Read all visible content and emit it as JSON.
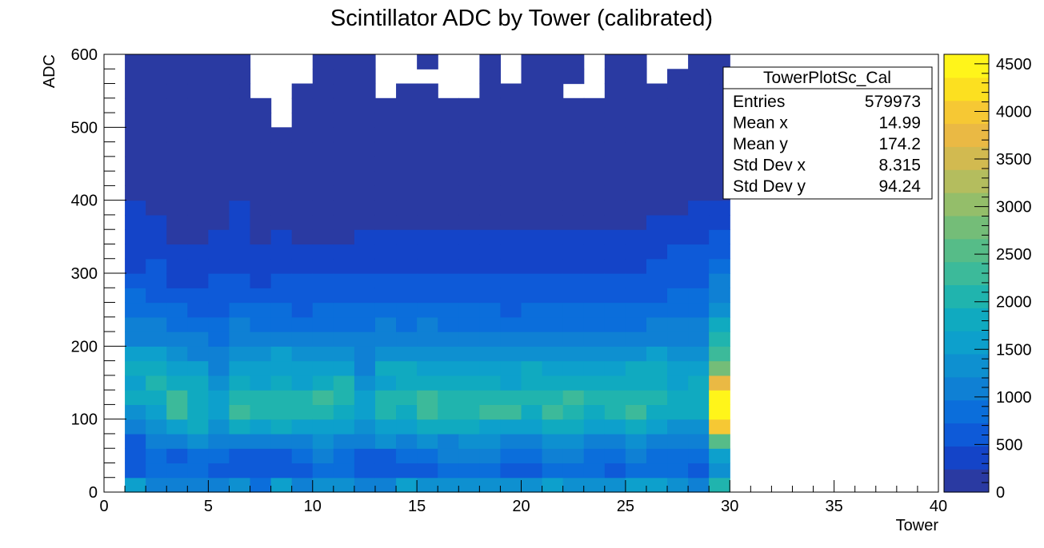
{
  "chart_data": {
    "type": "heatmap",
    "title": "Scintillator ADC by Tower (calibrated)",
    "xlabel": "Tower",
    "ylabel": "ADC",
    "xlim": [
      0,
      40
    ],
    "ylim": [
      0,
      600
    ],
    "x_ticks": [
      "0",
      "5",
      "10",
      "15",
      "20",
      "25",
      "30",
      "35",
      "40"
    ],
    "y_ticks": [
      "0",
      "100",
      "200",
      "300",
      "400",
      "500",
      "600"
    ],
    "bin_width_x": 1,
    "bin_width_y": 20,
    "x_bins_start": 1,
    "zlim": [
      0,
      4600
    ],
    "z_ticks": [
      "0",
      "500",
      "1000",
      "1500",
      "2000",
      "2500",
      "3000",
      "3500",
      "4000",
      "4500"
    ],
    "palette": [
      "#2a3aa2",
      "#1444c8",
      "#0e5ad8",
      "#0b6edb",
      "#0f80d4",
      "#0e90d0",
      "#0da0cc",
      "#10aac0",
      "#20b4ae",
      "#3cba9a",
      "#56bc88",
      "#74bd78",
      "#94be6a",
      "#b4bd5e",
      "#d2ba50",
      "#eab944",
      "#f6c834",
      "#fce020",
      "#fff51a"
    ],
    "stats_box": {
      "name": "TowerPlotSc_Cal",
      "rows": [
        {
          "label": "Entries",
          "value": "579973"
        },
        {
          "label": "Mean x",
          "value": "14.99"
        },
        {
          "label": "Mean y",
          "value": "174.2"
        },
        {
          "label": "Std Dev x",
          "value": "8.315"
        },
        {
          "label": "Std Dev y",
          "value": "94.24"
        }
      ]
    },
    "z_values_by_tower": [
      [
        1500,
        500,
        500,
        700,
        1200,
        1300,
        1800,
        1500,
        1700,
        1500,
        1200,
        1100,
        900,
        800,
        600,
        450,
        300,
        250,
        250,
        250,
        200,
        100,
        100,
        50,
        50,
        50,
        30,
        20,
        20,
        10
      ],
      [
        1100,
        800,
        800,
        1000,
        1300,
        1600,
        1900,
        2000,
        1700,
        1600,
        1200,
        1100,
        950,
        700,
        600,
        500,
        300,
        300,
        400,
        200,
        200,
        100,
        50,
        50,
        50,
        30,
        20,
        20,
        10,
        10
      ],
      [
        1000,
        800,
        700,
        1200,
        1600,
        2300,
        2200,
        1900,
        1600,
        1400,
        1100,
        900,
        800,
        600,
        450,
        300,
        300,
        200,
        150,
        150,
        100,
        50,
        50,
        30,
        30,
        20,
        20,
        20,
        10,
        10
      ],
      [
        1100,
        800,
        800,
        1300,
        1700,
        1700,
        1800,
        1800,
        1600,
        1200,
        1000,
        800,
        700,
        500,
        400,
        300,
        250,
        200,
        150,
        100,
        100,
        50,
        50,
        30,
        30,
        20,
        20,
        20,
        10,
        10
      ],
      [
        1000,
        500,
        800,
        1000,
        1300,
        1500,
        1600,
        1300,
        1200,
        1200,
        900,
        800,
        700,
        600,
        500,
        400,
        350,
        300,
        200,
        150,
        100,
        100,
        50,
        50,
        30,
        20,
        20,
        10,
        10,
        10
      ],
      [
        1300,
        500,
        700,
        1200,
        1700,
        2300,
        2100,
        1700,
        1600,
        1400,
        1200,
        1100,
        800,
        700,
        600,
        450,
        450,
        350,
        300,
        250,
        150,
        100,
        50,
        50,
        30,
        30,
        20,
        20,
        10,
        10
      ],
      [
        800,
        500,
        600,
        1200,
        1500,
        2000,
        2000,
        1500,
        1500,
        1300,
        1100,
        800,
        800,
        600,
        400,
        400,
        300,
        200,
        150,
        100,
        100,
        50,
        50,
        30,
        30,
        20,
        10,
        0,
        0,
        0
      ],
      [
        1600,
        500,
        500,
        1100,
        1800,
        2000,
        2100,
        1700,
        1600,
        1500,
        1200,
        900,
        800,
        600,
        500,
        300,
        300,
        250,
        100,
        100,
        100,
        50,
        50,
        30,
        30,
        0,
        0,
        0,
        0,
        0
      ],
      [
        1200,
        600,
        900,
        1200,
        1600,
        2000,
        2100,
        1600,
        1600,
        1300,
        1000,
        900,
        700,
        600,
        500,
        300,
        250,
        150,
        100,
        100,
        100,
        50,
        50,
        30,
        30,
        20,
        20,
        20,
        0,
        0
      ],
      [
        1300,
        900,
        1000,
        1300,
        1600,
        2100,
        2200,
        1900,
        1600,
        1300,
        1000,
        900,
        800,
        600,
        500,
        300,
        250,
        150,
        100,
        100,
        50,
        50,
        30,
        30,
        20,
        20,
        20,
        20,
        20,
        20
      ],
      [
        1400,
        800,
        900,
        1200,
        1600,
        1900,
        2100,
        2000,
        1600,
        1300,
        1000,
        900,
        800,
        600,
        500,
        300,
        250,
        150,
        100,
        100,
        50,
        50,
        30,
        30,
        20,
        20,
        20,
        20,
        20,
        20
      ],
      [
        1100,
        500,
        600,
        1000,
        1300,
        1500,
        1500,
        1300,
        1200,
        1200,
        1000,
        900,
        800,
        600,
        500,
        400,
        350,
        300,
        200,
        150,
        100,
        100,
        50,
        50,
        30,
        20,
        20,
        20,
        20,
        20
      ],
      [
        1200,
        500,
        700,
        1300,
        1600,
        2000,
        2000,
        1600,
        1700,
        1400,
        1200,
        1000,
        800,
        600,
        500,
        400,
        300,
        250,
        200,
        150,
        100,
        50,
        50,
        30,
        30,
        20,
        20,
        0,
        0,
        0
      ],
      [
        1600,
        600,
        800,
        1200,
        1600,
        1900,
        2000,
        1800,
        1700,
        1400,
        1100,
        900,
        800,
        600,
        500,
        400,
        300,
        250,
        200,
        150,
        100,
        50,
        50,
        30,
        30,
        20,
        20,
        20,
        0,
        0
      ],
      [
        1400,
        600,
        900,
        1300,
        1700,
        2400,
        2200,
        1700,
        1600,
        1400,
        1200,
        1000,
        800,
        600,
        500,
        400,
        300,
        250,
        200,
        150,
        100,
        50,
        50,
        30,
        30,
        20,
        20,
        20,
        0,
        20
      ],
      [
        1300,
        800,
        1000,
        1200,
        1800,
        2000,
        2100,
        1900,
        1600,
        1300,
        1100,
        900,
        800,
        600,
        500,
        400,
        300,
        250,
        200,
        150,
        100,
        50,
        50,
        30,
        30,
        20,
        20,
        0,
        0,
        0
      ],
      [
        1300,
        800,
        1000,
        1300,
        1800,
        2000,
        2100,
        1900,
        1600,
        1300,
        1100,
        900,
        800,
        600,
        500,
        400,
        300,
        250,
        200,
        150,
        100,
        50,
        50,
        30,
        30,
        20,
        20,
        0,
        0,
        0
      ],
      [
        1400,
        900,
        1000,
        1300,
        1600,
        2200,
        2100,
        1800,
        1600,
        1300,
        1000,
        900,
        800,
        600,
        500,
        400,
        300,
        250,
        200,
        150,
        100,
        50,
        50,
        30,
        30,
        20,
        20,
        20,
        20,
        20
      ],
      [
        1300,
        700,
        900,
        1200,
        1600,
        2400,
        2000,
        1600,
        1500,
        1300,
        1000,
        800,
        700,
        600,
        500,
        400,
        300,
        250,
        200,
        150,
        100,
        50,
        50,
        30,
        30,
        20,
        20,
        20,
        0,
        0
      ],
      [
        1400,
        700,
        900,
        1100,
        1500,
        1900,
        2000,
        1800,
        1700,
        1400,
        1100,
        900,
        800,
        600,
        500,
        400,
        350,
        300,
        200,
        150,
        100,
        50,
        50,
        30,
        30,
        20,
        20,
        20,
        20,
        20
      ],
      [
        1500,
        900,
        1000,
        1300,
        1700,
        2400,
        2100,
        1800,
        1600,
        1300,
        1100,
        900,
        800,
        600,
        500,
        400,
        300,
        250,
        200,
        150,
        100,
        50,
        50,
        30,
        30,
        20,
        20,
        20,
        20,
        20
      ],
      [
        1300,
        900,
        1000,
        1300,
        1700,
        2100,
        2200,
        1900,
        1600,
        1300,
        1000,
        900,
        800,
        600,
        500,
        400,
        300,
        250,
        200,
        150,
        100,
        50,
        50,
        30,
        30,
        20,
        20,
        0,
        20,
        20
      ],
      [
        1400,
        800,
        900,
        1200,
        1600,
        1900,
        2000,
        1700,
        1600,
        1300,
        1000,
        900,
        800,
        600,
        500,
        400,
        300,
        250,
        200,
        150,
        100,
        50,
        50,
        30,
        30,
        20,
        20,
        0,
        0,
        0
      ],
      [
        1300,
        700,
        900,
        1200,
        1600,
        2100,
        2100,
        1800,
        1600,
        1300,
        1000,
        900,
        800,
        600,
        500,
        400,
        300,
        250,
        200,
        150,
        100,
        50,
        50,
        30,
        30,
        20,
        20,
        20,
        20,
        20
      ],
      [
        1500,
        900,
        1100,
        1300,
        1700,
        2200,
        2100,
        1800,
        1700,
        1400,
        1100,
        900,
        800,
        600,
        500,
        400,
        300,
        250,
        200,
        150,
        100,
        50,
        50,
        30,
        30,
        20,
        20,
        20,
        20,
        20
      ],
      [
        1600,
        800,
        900,
        1100,
        1500,
        1900,
        2000,
        1900,
        1900,
        1500,
        1200,
        1000,
        900,
        700,
        600,
        500,
        350,
        300,
        250,
        200,
        100,
        50,
        50,
        30,
        30,
        20,
        20,
        20,
        0,
        0
      ],
      [
        1400,
        800,
        800,
        1000,
        1400,
        1700,
        1800,
        1600,
        1600,
        1300,
        1100,
        1000,
        900,
        800,
        700,
        600,
        500,
        350,
        300,
        200,
        150,
        100,
        50,
        50,
        30,
        30,
        20,
        20,
        20,
        0
      ],
      [
        1200,
        700,
        800,
        1000,
        1300,
        1700,
        1900,
        1700,
        1600,
        1400,
        1200,
        1100,
        900,
        800,
        700,
        600,
        500,
        350,
        300,
        250,
        150,
        100,
        50,
        50,
        30,
        20,
        20,
        20,
        10,
        10
      ],
      [
        2000,
        1300,
        1600,
        2500,
        3900,
        4600,
        4600,
        3800,
        2800,
        2300,
        2000,
        1700,
        1400,
        1100,
        1000,
        900,
        700,
        500,
        300,
        250,
        150,
        100,
        50,
        50,
        30,
        20,
        20,
        20,
        10,
        10
      ]
    ]
  }
}
